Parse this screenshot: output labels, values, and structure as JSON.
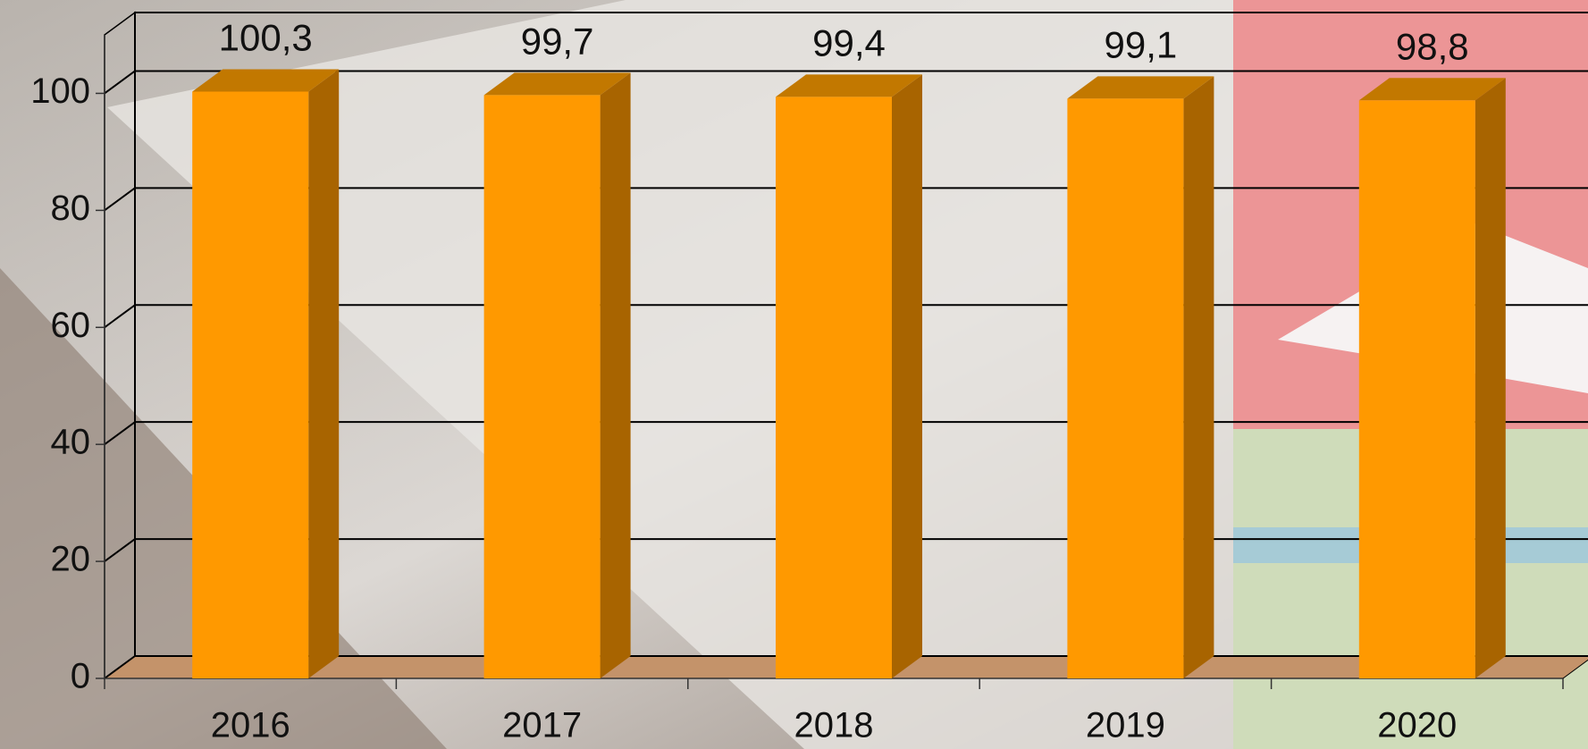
{
  "chart_data": {
    "type": "bar3d",
    "categories": [
      "2016",
      "2017",
      "2018",
      "2019",
      "2020"
    ],
    "values": [
      100.3,
      99.7,
      99.4,
      99.1,
      98.8
    ],
    "value_labels": [
      "100,3",
      "99,7",
      "99,4",
      "99,1",
      "98,8"
    ],
    "color": "#ff9900",
    "ylim": [
      0,
      110
    ],
    "yticks": [
      0,
      20,
      40,
      60,
      80,
      100
    ],
    "grid": true
  }
}
